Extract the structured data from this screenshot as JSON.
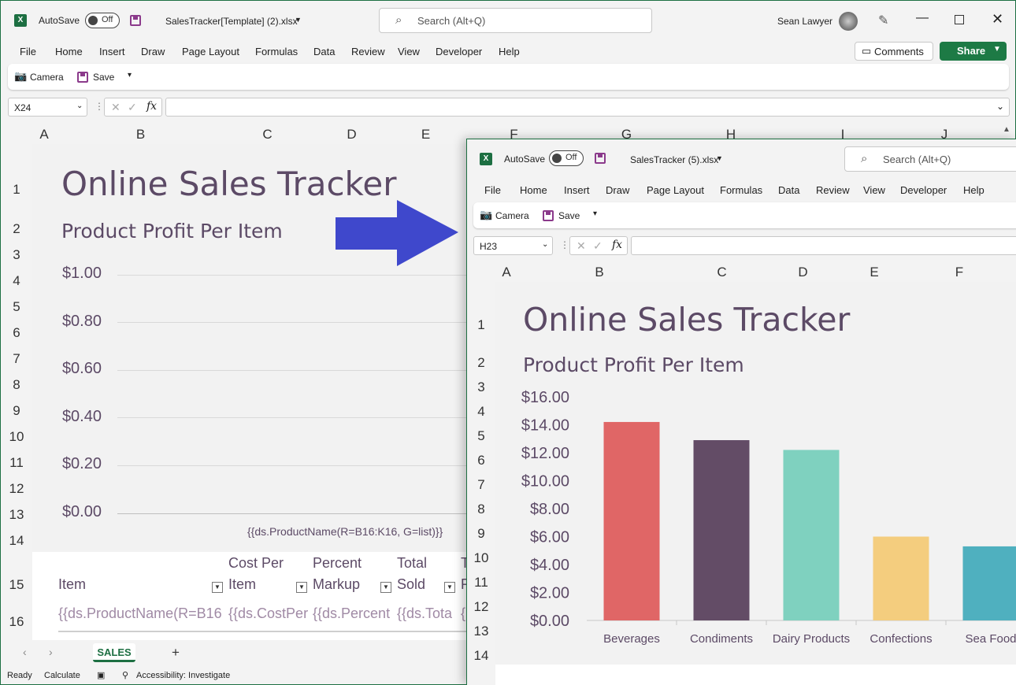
{
  "win1": {
    "autosave": "AutoSave",
    "toggle": "Off",
    "filename": "SalesTracker[Template] (2).xlsx",
    "search": "Search (Alt+Q)",
    "user": "Sean Lawyer",
    "menu": [
      "File",
      "Home",
      "Insert",
      "Draw",
      "Page Layout",
      "Formulas",
      "Data",
      "Review",
      "View",
      "Developer",
      "Help"
    ],
    "comments": "Comments",
    "share": "Share",
    "qat": {
      "camera": "Camera",
      "save": "Save"
    },
    "namebox": "X24",
    "cols": [
      "A",
      "B",
      "C",
      "D",
      "E",
      "F",
      "G",
      "H",
      "I",
      "J"
    ],
    "rows": [
      "1",
      "2",
      "3",
      "4",
      "5",
      "6",
      "7",
      "8",
      "9",
      "10",
      "11",
      "12",
      "13",
      "14",
      "15",
      "16"
    ],
    "title": "Online Sales Tracker",
    "subtitle": "Product Profit Per Item",
    "yticks": [
      "$1.00",
      "$0.80",
      "$0.60",
      "$0.40",
      "$0.20",
      "$0.00"
    ],
    "xlabel": "{{ds.ProductName(R=B16:K16, G=list)}}",
    "table_headers": {
      "item": "Item",
      "cost1": "Cost Per",
      "cost2": "Item",
      "pct1": "Percent",
      "pct2": "Markup",
      "tot1": "Total",
      "tot2": "Sold",
      "t5a": "T",
      "t5b": "R"
    },
    "table_row": [
      "{{ds.ProductName(R=B16",
      "{{ds.CostPer",
      "{{ds.Percent",
      "{{ds.Tota",
      "{"
    ],
    "sheet_tab": "SALES",
    "status": {
      "ready": "Ready",
      "calculate": "Calculate",
      "access": "Accessibility: Investigate"
    }
  },
  "win2": {
    "autosave": "AutoSave",
    "toggle": "Off",
    "filename": "SalesTracker (5).xlsx",
    "search": "Search (Alt+Q)",
    "menu": [
      "File",
      "Home",
      "Insert",
      "Draw",
      "Page Layout",
      "Formulas",
      "Data",
      "Review",
      "View",
      "Developer",
      "Help"
    ],
    "qat": {
      "camera": "Camera",
      "save": "Save"
    },
    "namebox": "H23",
    "cols": [
      "A",
      "B",
      "C",
      "D",
      "E",
      "F"
    ],
    "rows": [
      "1",
      "2",
      "3",
      "4",
      "5",
      "6",
      "7",
      "8",
      "9",
      "10",
      "11",
      "12",
      "13",
      "14"
    ],
    "title": "Online Sales Tracker",
    "subtitle": "Product Profit Per Item"
  },
  "colors": {
    "arrow": "#3f48cc",
    "title": "#5c4a66",
    "excel_green": "#1d6f42"
  },
  "chart_data": {
    "type": "bar",
    "categories": [
      "Beverages",
      "Condiments",
      "Dairy Products",
      "Confections",
      "Sea Food"
    ],
    "values": [
      14.2,
      12.9,
      12.2,
      6.0,
      5.3
    ],
    "colors": [
      "#e06666",
      "#634c66",
      "#7fd1bf",
      "#f4cd7e",
      "#4fb0bf"
    ],
    "yticks": [
      "$16.00",
      "$14.00",
      "$12.00",
      "$10.00",
      "$8.00",
      "$6.00",
      "$4.00",
      "$2.00",
      "$0.00"
    ],
    "ylim": [
      0,
      16
    ]
  }
}
